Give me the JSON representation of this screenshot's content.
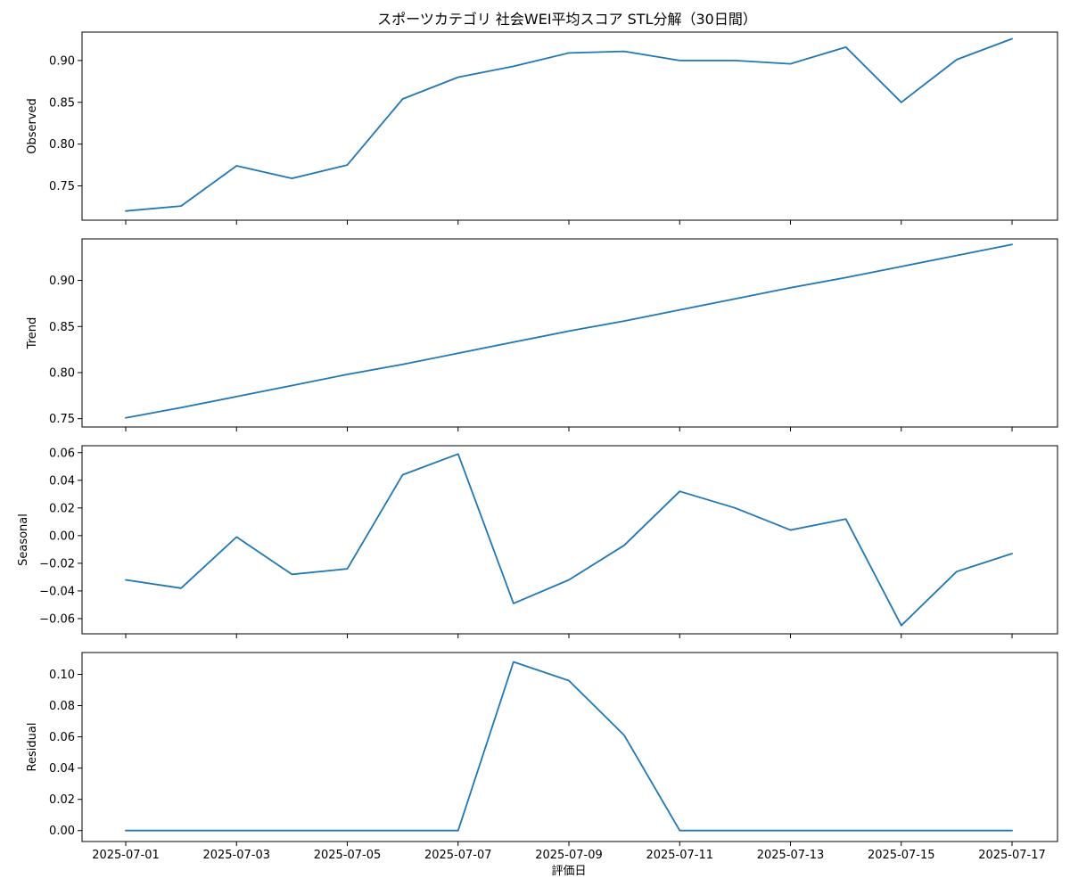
{
  "chart_data": {
    "type": "line",
    "title": "スポーツカテゴリ 社会WEI平均スコア STL分解（30日間）",
    "xlabel": "評価日",
    "x": [
      "2025-07-01",
      "2025-07-02",
      "2025-07-03",
      "2025-07-04",
      "2025-07-05",
      "2025-07-06",
      "2025-07-07",
      "2025-07-08",
      "2025-07-09",
      "2025-07-10",
      "2025-07-11",
      "2025-07-12",
      "2025-07-13",
      "2025-07-14",
      "2025-07-15",
      "2025-07-16",
      "2025-07-17"
    ],
    "x_tick_labels": [
      "2025-07-01",
      "2025-07-03",
      "2025-07-05",
      "2025-07-07",
      "2025-07-09",
      "2025-07-11",
      "2025-07-13",
      "2025-07-15",
      "2025-07-17"
    ],
    "line_color": "#1f77b4",
    "panels": [
      {
        "name": "Observed",
        "ylabel": "Observed",
        "ylim": [
          0.709,
          0.934
        ],
        "yticks": [
          0.75,
          0.8,
          0.85,
          0.9
        ],
        "ytick_labels": [
          "0.75",
          "0.80",
          "0.85",
          "0.90"
        ],
        "values": [
          0.72,
          0.726,
          0.774,
          0.759,
          0.775,
          0.854,
          0.88,
          0.893,
          0.909,
          0.911,
          0.9,
          0.9,
          0.896,
          0.916,
          0.85,
          0.901,
          0.926
        ]
      },
      {
        "name": "Trend",
        "ylabel": "Trend",
        "ylim": [
          0.741,
          0.945
        ],
        "yticks": [
          0.75,
          0.8,
          0.85,
          0.9
        ],
        "ytick_labels": [
          "0.75",
          "0.80",
          "0.85",
          "0.90"
        ],
        "values": [
          0.751,
          0.762,
          0.774,
          0.786,
          0.798,
          0.809,
          0.821,
          0.833,
          0.845,
          0.856,
          0.868,
          0.88,
          0.892,
          0.903,
          0.915,
          0.927,
          0.939
        ]
      },
      {
        "name": "Seasonal",
        "ylabel": "Seasonal",
        "ylim": [
          -0.071,
          0.065
        ],
        "yticks": [
          -0.06,
          -0.04,
          -0.02,
          0.0,
          0.02,
          0.04,
          0.06
        ],
        "ytick_labels": [
          "−0.06",
          "−0.04",
          "−0.02",
          "0.00",
          "0.02",
          "0.04",
          "0.06"
        ],
        "values": [
          -0.032,
          -0.038,
          -0.001,
          -0.028,
          -0.024,
          0.044,
          0.059,
          -0.049,
          -0.032,
          -0.007,
          0.032,
          0.02,
          0.004,
          0.012,
          -0.065,
          -0.026,
          -0.013
        ]
      },
      {
        "name": "Residual",
        "ylabel": "Residual",
        "ylim": [
          -0.007,
          0.114
        ],
        "yticks": [
          0.0,
          0.02,
          0.04,
          0.06,
          0.08,
          0.1
        ],
        "ytick_labels": [
          "0.00",
          "0.02",
          "0.04",
          "0.06",
          "0.08",
          "0.10"
        ],
        "values": [
          0.0,
          0.0,
          0.0,
          0.0,
          0.0,
          0.0,
          0.0,
          0.108,
          0.096,
          0.061,
          0.0,
          0.0,
          0.0,
          0.0,
          0.0,
          0.0,
          0.0
        ]
      }
    ]
  }
}
